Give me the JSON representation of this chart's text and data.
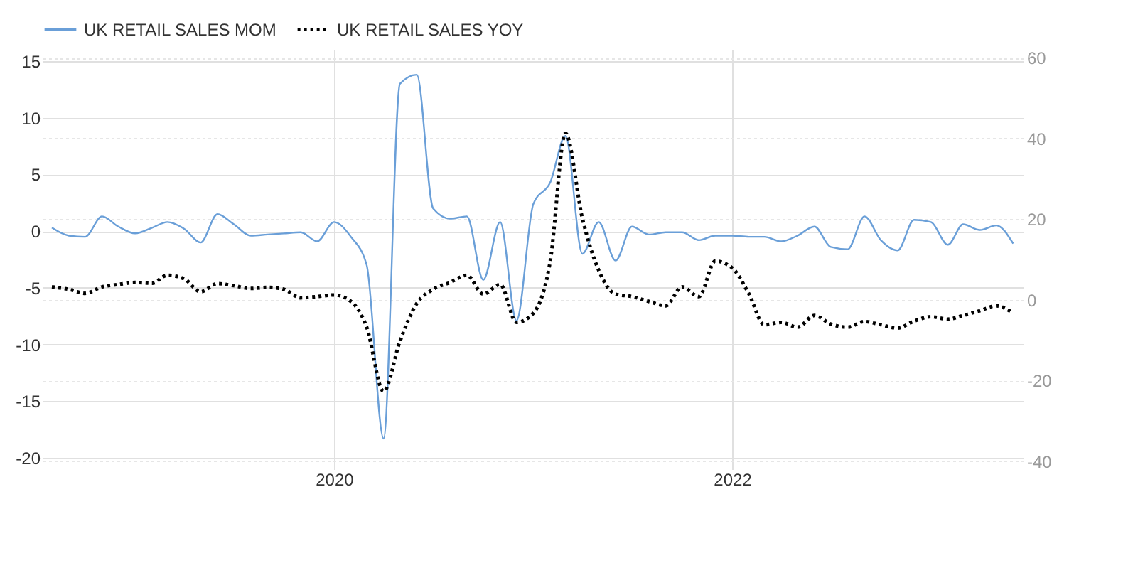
{
  "chart_data": {
    "type": "line",
    "x": [
      "2018-08",
      "2018-09",
      "2018-10",
      "2018-11",
      "2018-12",
      "2019-01",
      "2019-02",
      "2019-03",
      "2019-04",
      "2019-05",
      "2019-06",
      "2019-07",
      "2019-08",
      "2019-09",
      "2019-10",
      "2019-11",
      "2019-12",
      "2020-01",
      "2020-02",
      "2020-03",
      "2020-04",
      "2020-05",
      "2020-06",
      "2020-07",
      "2020-08",
      "2020-09",
      "2020-10",
      "2020-11",
      "2020-12",
      "2021-01",
      "2021-02",
      "2021-03",
      "2021-04",
      "2021-05",
      "2021-06",
      "2021-07",
      "2021-08",
      "2021-09",
      "2021-10",
      "2021-11",
      "2021-12",
      "2022-01",
      "2022-02",
      "2022-03",
      "2022-04",
      "2022-05",
      "2022-06",
      "2022-07",
      "2022-08",
      "2022-09",
      "2022-10",
      "2022-11",
      "2022-12",
      "2023-01",
      "2023-02",
      "2023-03",
      "2023-04",
      "2023-05",
      "2023-06"
    ],
    "series": [
      {
        "name": "UK RETAIL SALES MOM",
        "color": "#6a9fd8",
        "line_style": "solid",
        "values": [
          0.3,
          -0.4,
          -0.5,
          1.3,
          0.4,
          -0.2,
          0.3,
          0.8,
          0.2,
          -1.0,
          1.5,
          0.6,
          -0.4,
          -0.3,
          -0.2,
          -0.1,
          -0.9,
          0.8,
          -0.5,
          -3.0,
          -18.3,
          13.0,
          13.8,
          2.0,
          1.1,
          1.3,
          -4.3,
          0.8,
          -7.9,
          2.4,
          4.3,
          8.4,
          -2.0,
          0.8,
          -2.6,
          0.4,
          -0.3,
          -0.1,
          -0.1,
          -0.8,
          -0.4,
          -0.4,
          -0.5,
          -0.5,
          -0.9,
          -0.4,
          0.4,
          -1.4,
          -1.6,
          1.3,
          -0.8,
          -1.7,
          1.0,
          0.8,
          -1.2,
          0.6,
          0.1,
          0.5,
          -1.1
        ]
      },
      {
        "name": "UK RETAIL SALES YOY",
        "color": "#000000",
        "line_style": "dotted",
        "axis": "y2",
        "values": [
          3.2,
          2.6,
          1.6,
          3.2,
          3.8,
          4.3,
          4.1,
          6.1,
          5.2,
          2.0,
          4.0,
          3.5,
          2.8,
          3.1,
          2.6,
          0.5,
          0.8,
          1.2,
          -0.4,
          -6.8,
          -22.7,
          -10.3,
          -0.9,
          2.6,
          4.3,
          6.1,
          1.4,
          3.8,
          -5.6,
          -3.3,
          9.6,
          41.3,
          20.2,
          7.3,
          1.4,
          0.8,
          -0.4,
          -1.5,
          3.2,
          0.8,
          9.6,
          7.9,
          1.4,
          -6.2,
          -5.6,
          -6.8,
          -3.9,
          -6.0,
          -6.8,
          -5.4,
          -6.2,
          -7.0,
          -5.3,
          -4.2,
          -4.8,
          -3.9,
          -2.7,
          -1.5,
          -3.3
        ]
      }
    ],
    "xlim": [
      "2018-07-15",
      "2023-06-20"
    ],
    "xticks": [
      {
        "value": "2020-01-01",
        "label": "2020"
      },
      {
        "value": "2022-01-01",
        "label": "2022"
      }
    ],
    "ylim": [
      -21,
      16
    ],
    "yticks": [
      -20,
      -15,
      -10,
      -5,
      0,
      5,
      10,
      15
    ],
    "y2lim": [
      -42,
      62
    ],
    "y2ticks": [
      -40,
      -20,
      0,
      20,
      40,
      60
    ],
    "grid": true,
    "legend": "top left",
    "marker": "none"
  }
}
